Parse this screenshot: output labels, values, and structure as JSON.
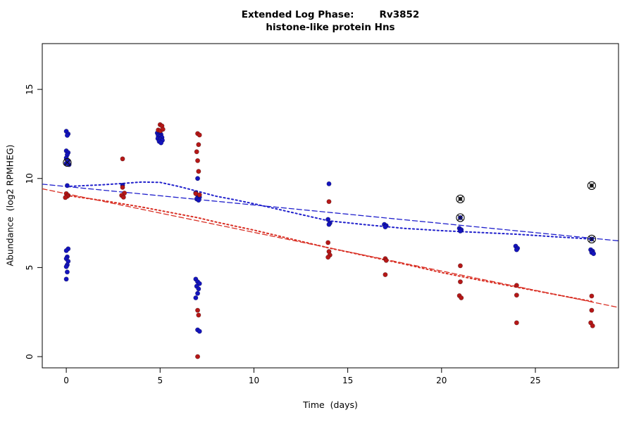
{
  "chart_data": {
    "type": "scatter",
    "title_prefix": "Extended Log Phase:",
    "title_gene": "Rv3852",
    "subtitle": "histone-like protein Hns",
    "xlabel": "Time  (days)",
    "ylabel": "Abundance  (log2 RPMHEG)",
    "xlim": [
      -1.28,
      29.43
    ],
    "ylim": [
      -0.63,
      17.57
    ],
    "xticks": [
      0,
      5,
      10,
      15,
      20,
      25
    ],
    "yticks": [
      0,
      5,
      10,
      15
    ],
    "grid": false,
    "legend": "none",
    "colors": {
      "blue_points": "#1414BE",
      "red_points": "#B51717",
      "blue_lines": "#2020CC",
      "red_lines": "#D93025",
      "outlier_ring": "#111111"
    },
    "series": [
      {
        "name": "condition-blue",
        "color": "#1414BE",
        "points": [
          [
            0.0,
            12.65
          ],
          [
            0.1,
            12.5
          ],
          [
            0.05,
            12.42
          ],
          [
            0.0,
            11.55
          ],
          [
            0.1,
            11.45
          ],
          [
            0.05,
            11.33
          ],
          [
            0.0,
            11.15
          ],
          [
            0.1,
            11.0
          ],
          [
            0.0,
            10.85
          ],
          [
            0.15,
            10.78
          ],
          [
            0.05,
            9.6
          ],
          [
            0.1,
            6.05
          ],
          [
            0.0,
            5.95
          ],
          [
            0.05,
            5.6
          ],
          [
            0.0,
            5.5
          ],
          [
            0.1,
            5.35
          ],
          [
            0.05,
            5.15
          ],
          [
            0.0,
            5.05
          ],
          [
            0.05,
            4.75
          ],
          [
            0.0,
            4.35
          ],
          [
            3.0,
            9.62
          ],
          [
            4.85,
            12.55
          ],
          [
            4.95,
            12.5
          ],
          [
            5.05,
            12.46
          ],
          [
            4.9,
            12.4
          ],
          [
            5.0,
            12.36
          ],
          [
            5.1,
            12.3
          ],
          [
            4.88,
            12.24
          ],
          [
            5.0,
            12.2
          ],
          [
            5.12,
            12.14
          ],
          [
            4.95,
            12.08
          ],
          [
            5.05,
            12.0
          ],
          [
            5.0,
            12.62
          ],
          [
            7.0,
            10.0
          ],
          [
            6.9,
            9.2
          ],
          [
            7.0,
            9.05
          ],
          [
            7.1,
            8.95
          ],
          [
            6.95,
            8.85
          ],
          [
            7.05,
            8.78
          ],
          [
            6.9,
            4.35
          ],
          [
            7.0,
            4.2
          ],
          [
            7.1,
            4.1
          ],
          [
            6.95,
            3.95
          ],
          [
            7.05,
            3.8
          ],
          [
            7.0,
            3.55
          ],
          [
            6.9,
            3.3
          ],
          [
            7.0,
            1.5
          ],
          [
            7.1,
            1.42
          ],
          [
            14.0,
            9.7
          ],
          [
            13.95,
            7.7
          ],
          [
            14.05,
            7.5
          ],
          [
            14.0,
            7.42
          ],
          [
            16.95,
            7.42
          ],
          [
            17.05,
            7.35
          ],
          [
            17.0,
            7.28
          ],
          [
            20.95,
            7.2
          ],
          [
            21.05,
            7.12
          ],
          [
            21.0,
            7.05
          ],
          [
            21.0,
            7.8
          ],
          [
            23.95,
            6.2
          ],
          [
            24.05,
            6.08
          ],
          [
            24.0,
            6.0
          ],
          [
            28.0,
            6.6
          ],
          [
            27.95,
            6.0
          ],
          [
            28.05,
            5.92
          ],
          [
            28.0,
            5.85
          ],
          [
            28.1,
            5.78
          ]
        ]
      },
      {
        "name": "condition-red",
        "color": "#B51717",
        "points": [
          [
            0.0,
            9.15
          ],
          [
            0.1,
            9.05
          ],
          [
            0.05,
            9.0
          ],
          [
            -0.05,
            8.93
          ],
          [
            3.0,
            11.1
          ],
          [
            3.0,
            9.5
          ],
          [
            3.1,
            9.18
          ],
          [
            2.95,
            9.05
          ],
          [
            3.05,
            8.95
          ],
          [
            5.0,
            13.02
          ],
          [
            5.1,
            12.95
          ],
          [
            4.9,
            12.72
          ],
          [
            5.02,
            12.68
          ],
          [
            5.15,
            12.76
          ],
          [
            7.0,
            12.52
          ],
          [
            7.1,
            12.44
          ],
          [
            7.05,
            11.9
          ],
          [
            6.95,
            11.5
          ],
          [
            7.0,
            11.0
          ],
          [
            7.05,
            10.4
          ],
          [
            6.9,
            9.15
          ],
          [
            7.1,
            9.08
          ],
          [
            7.0,
            2.6
          ],
          [
            7.05,
            2.33
          ],
          [
            7.0,
            0.0
          ],
          [
            14.0,
            8.7
          ],
          [
            13.95,
            6.4
          ],
          [
            14.0,
            5.9
          ],
          [
            14.05,
            5.7
          ],
          [
            13.95,
            5.58
          ],
          [
            17.0,
            5.5
          ],
          [
            17.05,
            5.4
          ],
          [
            17.0,
            4.6
          ],
          [
            21.0,
            5.1
          ],
          [
            21.0,
            4.2
          ],
          [
            20.95,
            3.42
          ],
          [
            21.05,
            3.3
          ],
          [
            24.0,
            4.0
          ],
          [
            24.0,
            3.45
          ],
          [
            24.0,
            1.9
          ],
          [
            28.0,
            3.4
          ],
          [
            28.0,
            2.6
          ],
          [
            27.95,
            1.9
          ],
          [
            28.05,
            1.73
          ]
        ]
      }
    ],
    "outlier_points": [
      {
        "x": 0.05,
        "y": 10.9,
        "dot": "#1414BE"
      },
      {
        "x": 21.0,
        "y": 8.85,
        "dot": "#222222"
      },
      {
        "x": 21.0,
        "y": 7.8,
        "dot": "#1414BE"
      },
      {
        "x": 28.0,
        "y": 9.6,
        "dot": "#222222"
      },
      {
        "x": 28.0,
        "y": 6.6,
        "dot": "#1414BE"
      }
    ],
    "trend_lines": [
      {
        "name": "red-linear-fit",
        "color": "#D93025",
        "style": "dashed",
        "dash": "7,4",
        "width": 1.3,
        "points": [
          [
            -1.28,
            9.42
          ],
          [
            29.43,
            2.76
          ]
        ]
      },
      {
        "name": "red-smooth-fit",
        "color": "#D93025",
        "style": "dotted",
        "dash": "2.2,3.6",
        "width": 2,
        "points": [
          [
            0,
            9.05
          ],
          [
            2,
            8.75
          ],
          [
            4,
            8.4
          ],
          [
            6,
            8.0
          ],
          [
            7,
            7.8
          ],
          [
            8,
            7.55
          ],
          [
            10,
            7.1
          ],
          [
            12,
            6.6
          ],
          [
            14,
            6.1
          ],
          [
            16,
            5.65
          ],
          [
            18,
            5.2
          ],
          [
            20,
            4.72
          ],
          [
            22,
            4.3
          ],
          [
            24,
            3.9
          ],
          [
            26,
            3.5
          ],
          [
            28,
            3.1
          ]
        ]
      },
      {
        "name": "blue-linear-fit",
        "color": "#2020CC",
        "style": "dashed",
        "dash": "7,4",
        "width": 1.3,
        "points": [
          [
            -1.28,
            9.68
          ],
          [
            29.43,
            6.5
          ]
        ]
      },
      {
        "name": "blue-smooth-fit",
        "color": "#2020CC",
        "style": "dotted",
        "dash": "2.2,3.6",
        "width": 2,
        "points": [
          [
            0,
            9.55
          ],
          [
            2,
            9.65
          ],
          [
            3,
            9.72
          ],
          [
            4,
            9.8
          ],
          [
            5,
            9.78
          ],
          [
            6,
            9.55
          ],
          [
            7,
            9.28
          ],
          [
            8,
            9.0
          ],
          [
            9,
            8.8
          ],
          [
            10,
            8.58
          ],
          [
            12,
            8.1
          ],
          [
            14,
            7.62
          ],
          [
            16,
            7.4
          ],
          [
            18,
            7.2
          ],
          [
            20,
            7.07
          ],
          [
            22,
            6.97
          ],
          [
            24,
            6.87
          ],
          [
            26,
            6.73
          ],
          [
            28,
            6.6
          ]
        ]
      }
    ]
  }
}
